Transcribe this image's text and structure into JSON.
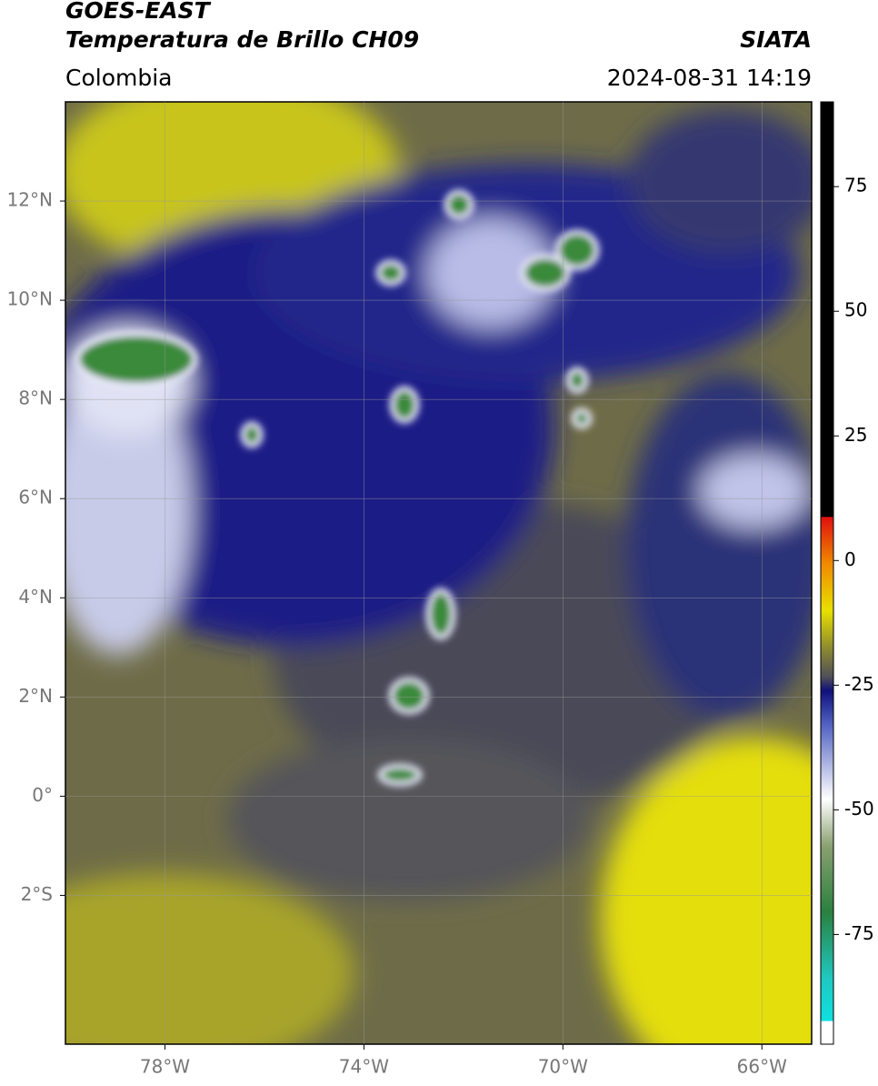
{
  "header": {
    "satellite": "GOES-EAST",
    "product": "Temperatura de Brillo CH09",
    "source": "SIATA",
    "region": "Colombia",
    "datetime": "2024-08-31 14:19"
  },
  "map": {
    "lon_range": [
      -80,
      -65
    ],
    "lat_range": [
      -5,
      14
    ],
    "lon_ticks": [
      {
        "value": -78,
        "label": "78°W"
      },
      {
        "value": -74,
        "label": "74°W"
      },
      {
        "value": -70,
        "label": "70°W"
      },
      {
        "value": -66,
        "label": "66°W"
      }
    ],
    "lat_ticks": [
      {
        "value": 12,
        "label": "12°N"
      },
      {
        "value": 10,
        "label": "10°N"
      },
      {
        "value": 8,
        "label": "8°N"
      },
      {
        "value": 6,
        "label": "6°N"
      },
      {
        "value": 4,
        "label": "4°N"
      },
      {
        "value": 2,
        "label": "2°N"
      },
      {
        "value": 0,
        "label": "0°"
      },
      {
        "value": -2,
        "label": "2°S"
      }
    ]
  },
  "colorbar": {
    "range": [
      -97,
      92
    ],
    "ticks": [
      75,
      50,
      25,
      0,
      -25,
      -50,
      -75
    ]
  }
}
